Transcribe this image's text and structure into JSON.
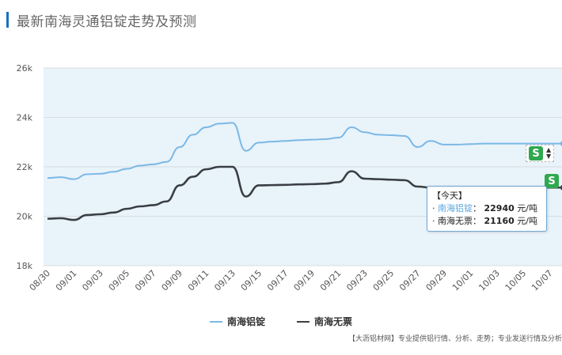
{
  "header": {
    "title": "最新南海灵通铝锭走势及预测"
  },
  "chart_data": {
    "type": "line",
    "x": [
      "08/30",
      "08/31",
      "09/01",
      "09/02",
      "09/03",
      "09/04",
      "09/05",
      "09/06",
      "09/07",
      "09/08",
      "09/09",
      "09/10",
      "09/11",
      "09/12",
      "09/13",
      "09/14",
      "09/15",
      "09/16",
      "09/17",
      "09/18",
      "09/19",
      "09/20",
      "09/21",
      "09/22",
      "09/23",
      "09/24",
      "09/25",
      "09/26",
      "09/27",
      "09/28",
      "09/29",
      "09/30",
      "10/01",
      "10/02",
      "10/03",
      "10/04",
      "10/05",
      "10/06",
      "10/07",
      "10/08"
    ],
    "xticks": [
      "08/30",
      "09/01",
      "09/03",
      "09/05",
      "09/07",
      "09/09",
      "09/11",
      "09/13",
      "09/15",
      "09/17",
      "09/19",
      "09/21",
      "09/23",
      "09/25",
      "09/27",
      "09/29",
      "10/01",
      "10/03",
      "10/05",
      "10/07"
    ],
    "yticks": [
      "26k",
      "24k",
      "22k",
      "20k",
      "18k"
    ],
    "ylim": [
      18000,
      26000
    ],
    "series": [
      {
        "name": "南海铝锭",
        "color": "#7ab8e6",
        "values": [
          21550,
          21580,
          21500,
          21700,
          21720,
          21800,
          21920,
          22050,
          22100,
          22200,
          22800,
          23300,
          23600,
          23750,
          23780,
          22650,
          22980,
          23020,
          23050,
          23080,
          23100,
          23120,
          23180,
          23600,
          23400,
          23300,
          23280,
          23250,
          22800,
          23050,
          22900,
          22900,
          22920,
          22940,
          22940,
          22940,
          22940,
          22940,
          22940,
          22940
        ]
      },
      {
        "name": "南海无票",
        "color": "#3a3f45",
        "values": [
          19900,
          19920,
          19850,
          20050,
          20080,
          20150,
          20300,
          20400,
          20450,
          20600,
          21250,
          21600,
          21900,
          22000,
          22000,
          20800,
          21250,
          21260,
          21270,
          21290,
          21300,
          21320,
          21380,
          21820,
          21520,
          21500,
          21480,
          21460,
          21200,
          21160,
          21160,
          21160,
          21160,
          21160,
          21160,
          21160,
          21160,
          21160,
          21160,
          21160
        ]
      }
    ]
  },
  "tooltip": {
    "title": "【今天】",
    "rows": [
      {
        "name": "南海铝锭",
        "value": "22940",
        "unit": "元/吨"
      },
      {
        "name": "南海无票",
        "value": "21160",
        "unit": "元/吨"
      }
    ]
  },
  "badges": {
    "s_label": "S"
  },
  "footer": {
    "source": "【大沥铝材网】专业提供铝行情、分析、走势；专业发送行情及分析"
  }
}
